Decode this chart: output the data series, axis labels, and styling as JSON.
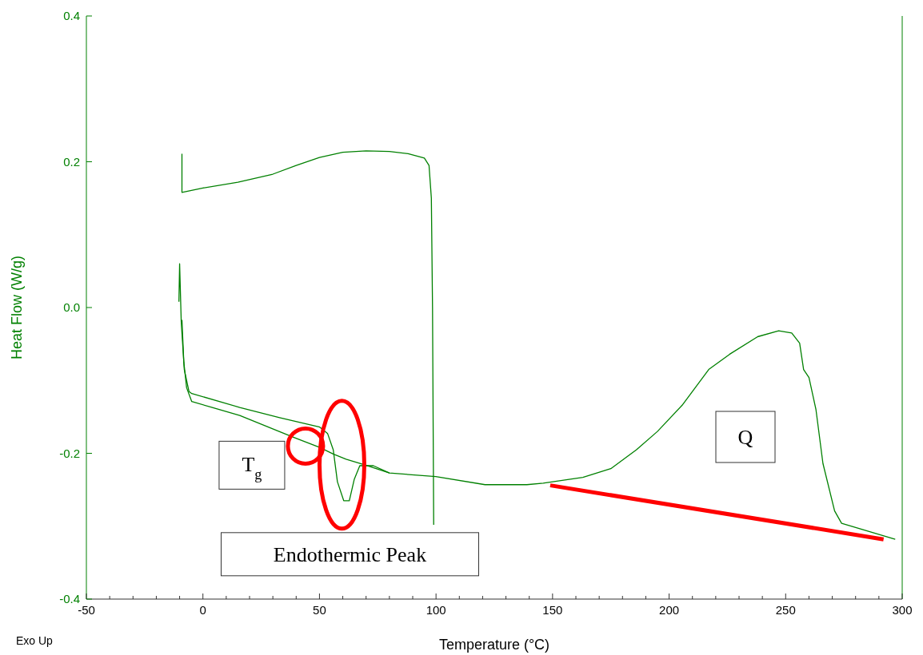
{
  "chart_data": {
    "type": "line",
    "xlabel": "Temperature (°C)",
    "ylabel": "Heat Flow (W/g)",
    "xlim": [
      -50,
      300
    ],
    "ylim": [
      -0.4,
      0.4
    ],
    "xticks": [
      -50,
      {
        "value": -40,
        "label": null
      },
      {
        "value": -30,
        "label": null
      },
      {
        "value": -20,
        "label": null
      },
      {
        "value": -10,
        "label": null
      },
      0,
      {
        "value": 10,
        "label": null
      },
      {
        "value": 20,
        "label": null
      },
      {
        "value": 30,
        "label": null
      },
      {
        "value": 40,
        "label": null
      },
      50,
      {
        "value": 60,
        "label": null
      },
      {
        "value": 70,
        "label": null
      },
      {
        "value": 80,
        "label": null
      },
      {
        "value": 90,
        "label": null
      },
      100,
      {
        "value": 110,
        "label": null
      },
      {
        "value": 120,
        "label": null
      },
      {
        "value": 130,
        "label": null
      },
      {
        "value": 140,
        "label": null
      },
      150,
      {
        "value": 160,
        "label": null
      },
      {
        "value": 170,
        "label": null
      },
      {
        "value": 180,
        "label": null
      },
      {
        "value": 190,
        "label": null
      },
      200,
      {
        "value": 210,
        "label": null
      },
      {
        "value": 220,
        "label": null
      },
      {
        "value": 230,
        "label": null
      },
      {
        "value": 240,
        "label": null
      },
      250,
      {
        "value": 260,
        "label": null
      },
      {
        "value": 270,
        "label": null
      },
      {
        "value": 280,
        "label": null
      },
      {
        "value": 290,
        "label": null
      },
      300
    ],
    "yticks": [
      {
        "value": -0.4,
        "label": "-0.4"
      },
      {
        "value": -0.2,
        "label": "-0.2"
      },
      {
        "value": 0,
        "label": "0.0"
      },
      {
        "value": 0.2,
        "label": "0.2"
      },
      {
        "value": 0.4,
        "label": "0.4"
      }
    ],
    "grid": false,
    "line_style": "solid",
    "marker": "none",
    "series": [
      {
        "color": "#008000",
        "x": [
          -9,
          -9,
          0,
          15,
          30,
          40,
          50,
          60,
          70,
          80,
          88,
          95,
          97,
          98,
          98.5,
          99
        ],
        "values": [
          0.211,
          0.158,
          0.164,
          0.172,
          0.183,
          0.195,
          0.206,
          0.213,
          0.215,
          0.214,
          0.211,
          0.205,
          0.195,
          0.15,
          0,
          -0.298
        ]
      },
      {
        "color": "#008000",
        "x": [
          -10.3,
          -10,
          -9.3,
          -8,
          -6,
          -4.8,
          15.8,
          32.9,
          50.1,
          53.5,
          55.9,
          57.7,
          60.4,
          62.8,
          64.9,
          67.3,
          73.1,
          80,
          99.9,
          121,
          139,
          146,
          156.5,
          163,
          175,
          186,
          195,
          205.6,
          217,
          226,
          238,
          247,
          252.6,
          256,
          257.7,
          260,
          263,
          266,
          271,
          274,
          283.5,
          297
        ],
        "values": [
          0.008,
          0.06,
          -0.02,
          -0.085,
          -0.115,
          -0.118,
          -0.137,
          -0.151,
          -0.164,
          -0.173,
          -0.195,
          -0.239,
          -0.265,
          -0.265,
          -0.236,
          -0.217,
          -0.217,
          -0.227,
          -0.232,
          -0.243,
          -0.243,
          -0.241,
          -0.236,
          -0.233,
          -0.221,
          -0.195,
          -0.17,
          -0.134,
          -0.085,
          -0.064,
          -0.04,
          -0.032,
          -0.035,
          -0.049,
          -0.085,
          -0.096,
          -0.14,
          -0.214,
          -0.279,
          -0.296,
          -0.305,
          -0.318
        ]
      },
      {
        "color": "#008000",
        "x": [
          -9,
          -8.2,
          -7,
          -4.8,
          15.8,
          38.8,
          50.1,
          55.9,
          61.4,
          69.6,
          80
        ],
        "values": [
          -0.017,
          -0.075,
          -0.11,
          -0.129,
          -0.148,
          -0.178,
          -0.192,
          -0.201,
          -0.208,
          -0.216,
          -0.227
        ]
      },
      {
        "color": "#ff0000",
        "x": [
          149,
          292
        ],
        "values": [
          -0.244,
          -0.318
        ]
      }
    ],
    "annotations": [
      {
        "text": "T$_{g}$",
        "x": 44,
        "y": -0.19
      },
      {
        "text": "Endothermic Peak",
        "x": 61,
        "y": -0.265
      },
      "Q",
      "Exo Up"
    ]
  }
}
